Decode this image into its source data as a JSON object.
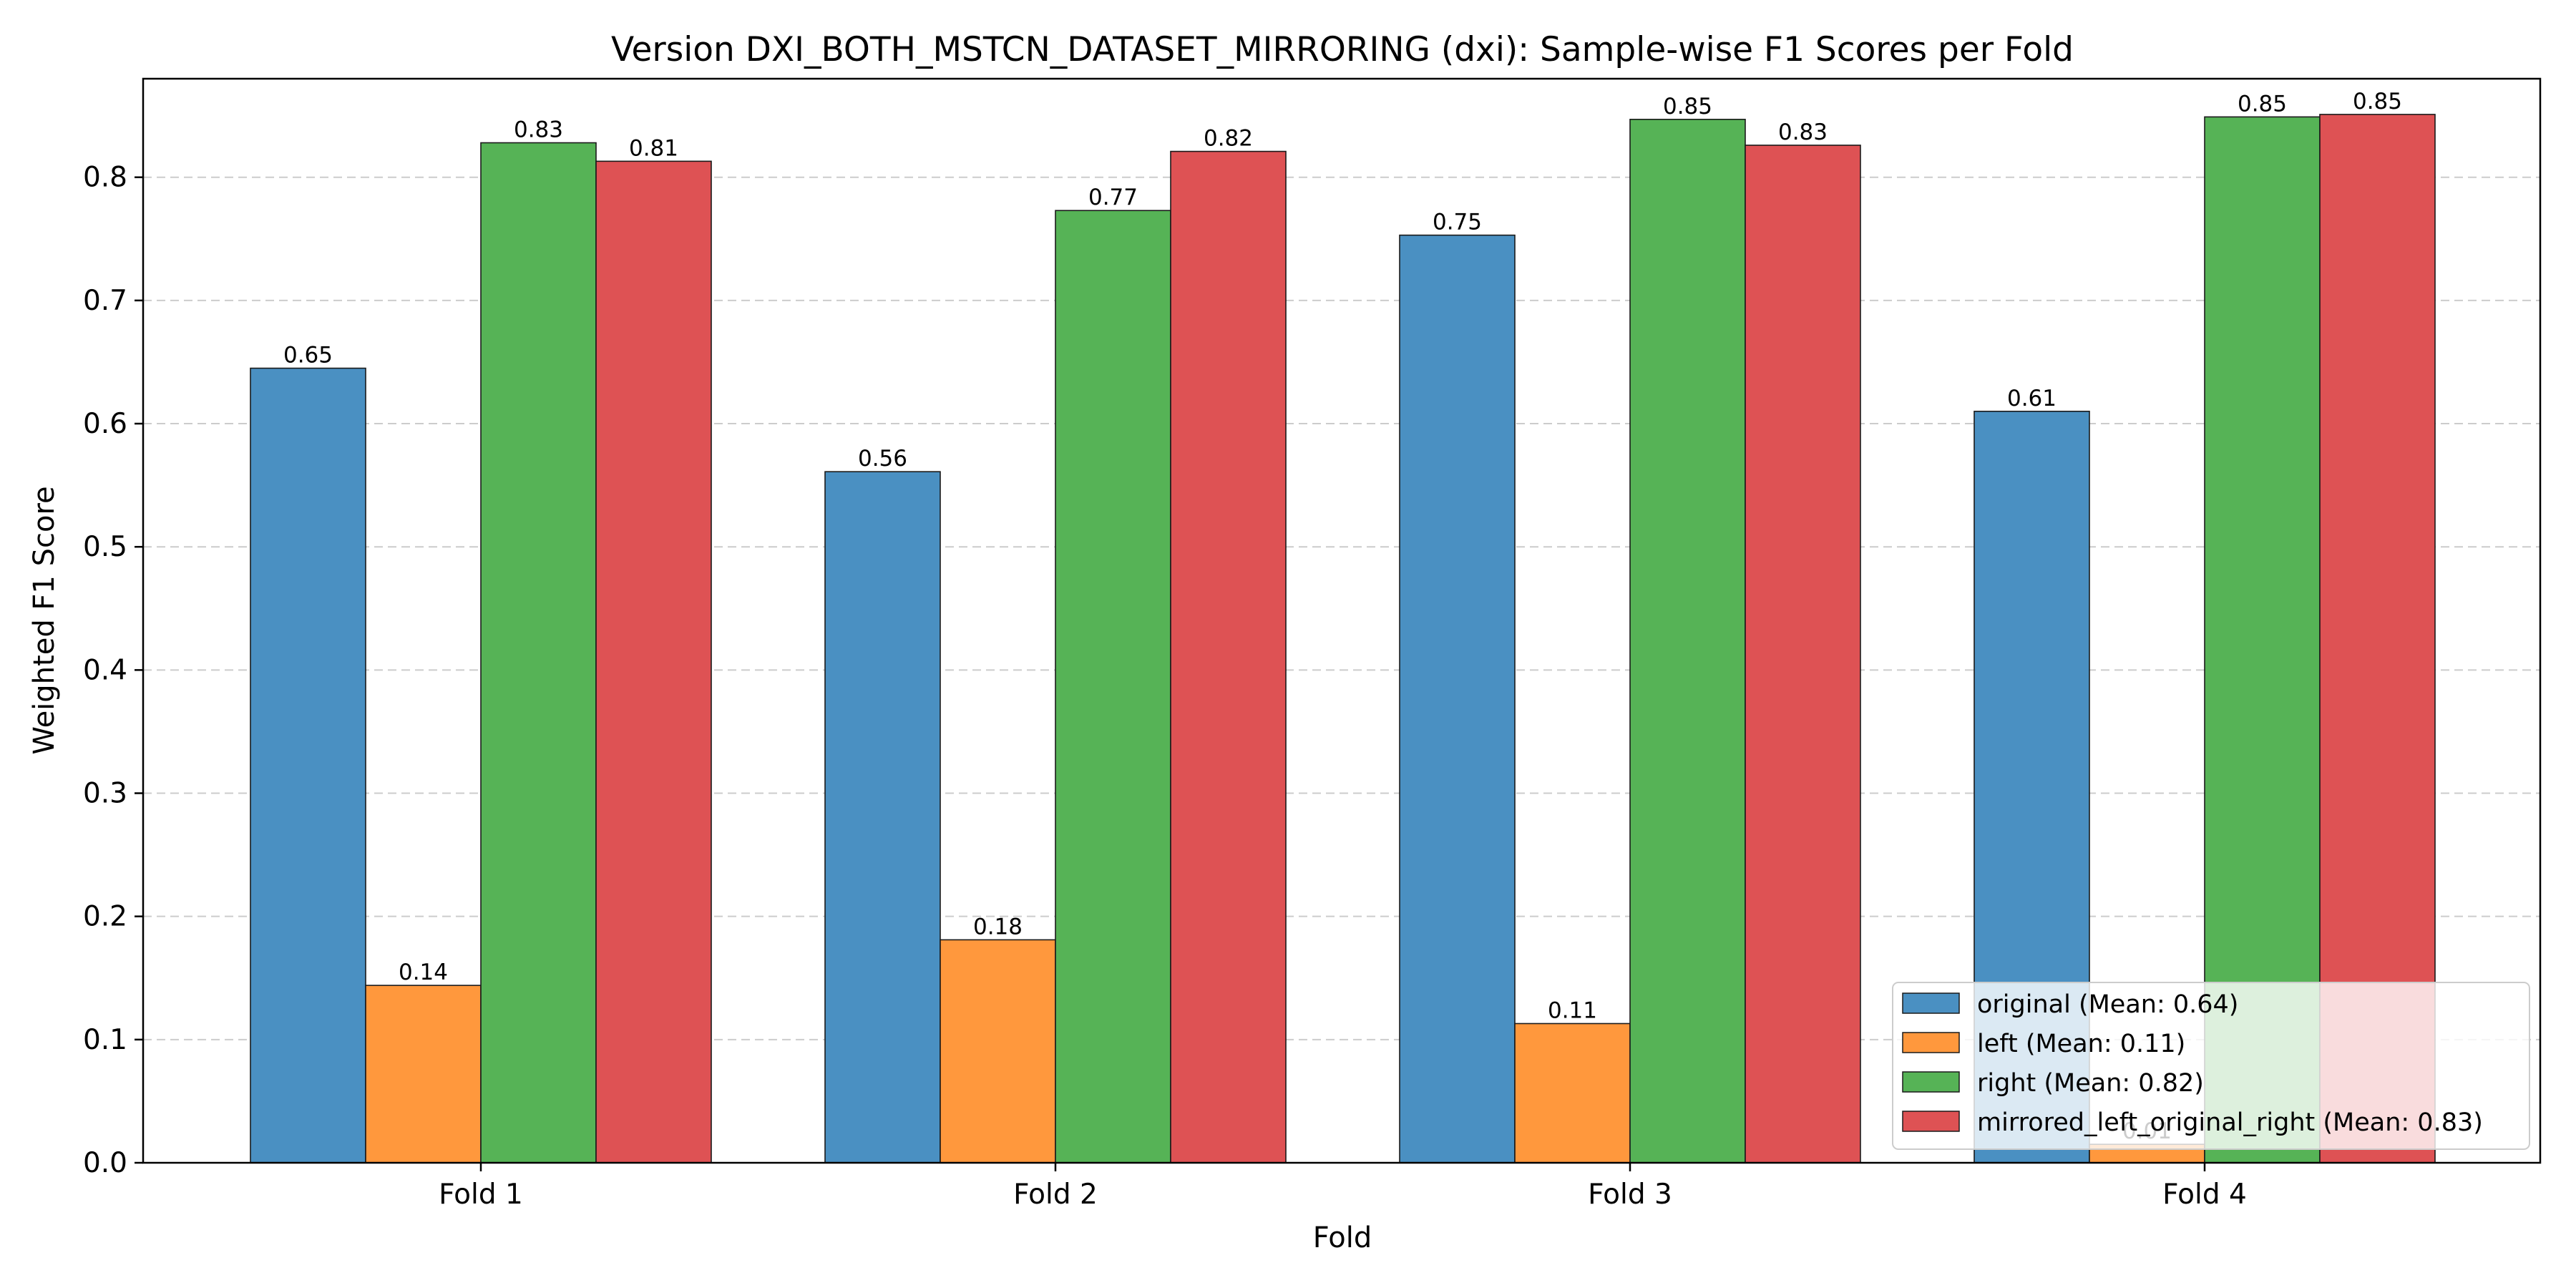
{
  "chart_data": {
    "type": "bar",
    "title": "Version DXI_BOTH_MSTCN_DATASET_MIRRORING (dxi): Sample-wise F1 Scores per Fold",
    "xlabel": "Fold",
    "ylabel": "Weighted F1 Score",
    "categories": [
      "Fold 1",
      "Fold 2",
      "Fold 3",
      "Fold 4"
    ],
    "ylim": [
      0,
      0.88
    ],
    "yticks": [
      "0.0",
      "0.1",
      "0.2",
      "0.3",
      "0.4",
      "0.5",
      "0.6",
      "0.7",
      "0.8"
    ],
    "grid": "y-dashed",
    "legend_position": "bottom-right",
    "series": [
      {
        "name": "original (Mean: 0.64)",
        "color": "#4a90c2",
        "values": [
          0.645,
          0.561,
          0.753,
          0.61
        ],
        "labels": [
          "0.65",
          "0.56",
          "0.75",
          "0.61"
        ]
      },
      {
        "name": "left (Mean: 0.11)",
        "color": "#ff983d",
        "values": [
          0.144,
          0.181,
          0.113,
          0.015
        ],
        "labels": [
          "0.14",
          "0.18",
          "0.11",
          "0.01"
        ]
      },
      {
        "name": "right (Mean: 0.82)",
        "color": "#56b356",
        "values": [
          0.828,
          0.773,
          0.847,
          0.849
        ],
        "labels": [
          "0.83",
          "0.77",
          "0.85",
          "0.85"
        ]
      },
      {
        "name": "mirrored_left_original_right (Mean: 0.83)",
        "color": "#de5254",
        "values": [
          0.813,
          0.821,
          0.826,
          0.851
        ],
        "labels": [
          "0.81",
          "0.82",
          "0.83",
          "0.85"
        ]
      }
    ]
  }
}
